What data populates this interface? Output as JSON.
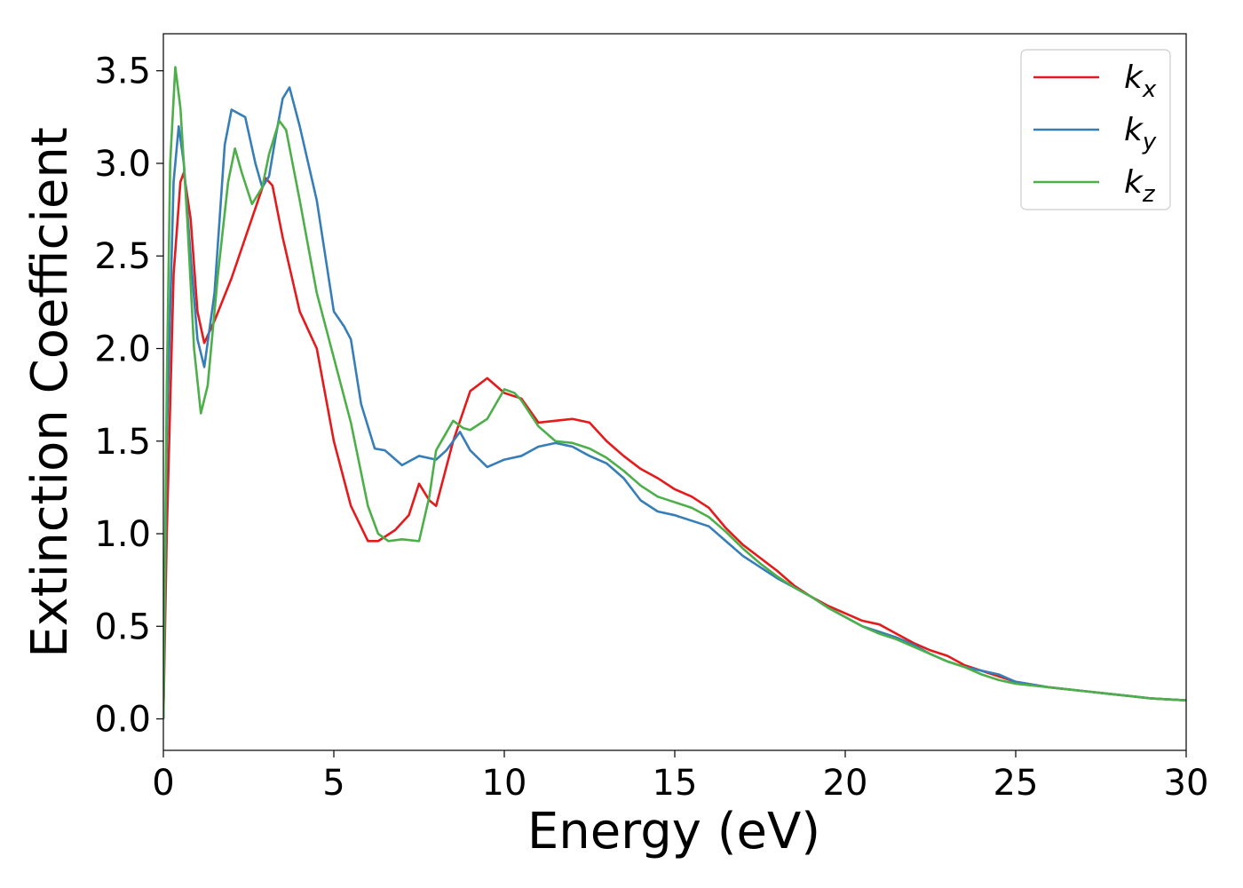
{
  "chart_data": {
    "type": "line",
    "xlabel": "Energy (eV)",
    "ylabel": "Extinction Coefficient",
    "xlim": [
      0,
      30
    ],
    "ylim": [
      -0.17,
      3.7
    ],
    "xticks": [
      0,
      5,
      10,
      15,
      20,
      25,
      30
    ],
    "xtick_labels": [
      "0",
      "5",
      "10",
      "15",
      "20",
      "25",
      "30"
    ],
    "yticks": [
      0.0,
      0.5,
      1.0,
      1.5,
      2.0,
      2.5,
      3.0,
      3.5
    ],
    "ytick_labels": [
      "0.0",
      "0.5",
      "1.0",
      "1.5",
      "2.0",
      "2.5",
      "3.0",
      "3.5"
    ],
    "grid": false,
    "legend_position": "top-right",
    "series": [
      {
        "name": "k_x",
        "label_base": "k",
        "label_sub": "x",
        "color": "#e41a1c",
        "points": [
          [
            0,
            0
          ],
          [
            0.1,
            1.0
          ],
          [
            0.3,
            2.4
          ],
          [
            0.5,
            2.9
          ],
          [
            0.6,
            2.95
          ],
          [
            0.8,
            2.7
          ],
          [
            1.0,
            2.2
          ],
          [
            1.2,
            2.03
          ],
          [
            1.5,
            2.15
          ],
          [
            2.0,
            2.38
          ],
          [
            2.5,
            2.65
          ],
          [
            3.0,
            2.92
          ],
          [
            3.2,
            2.88
          ],
          [
            3.5,
            2.6
          ],
          [
            4.0,
            2.2
          ],
          [
            4.5,
            2.0
          ],
          [
            5.0,
            1.5
          ],
          [
            5.5,
            1.15
          ],
          [
            6.0,
            0.96
          ],
          [
            6.3,
            0.96
          ],
          [
            6.8,
            1.02
          ],
          [
            7.2,
            1.1
          ],
          [
            7.5,
            1.27
          ],
          [
            7.8,
            1.18
          ],
          [
            8.0,
            1.15
          ],
          [
            8.5,
            1.5
          ],
          [
            9.0,
            1.77
          ],
          [
            9.5,
            1.84
          ],
          [
            10.0,
            1.76
          ],
          [
            10.5,
            1.73
          ],
          [
            11.0,
            1.6
          ],
          [
            11.5,
            1.61
          ],
          [
            12.0,
            1.62
          ],
          [
            12.5,
            1.6
          ],
          [
            13.0,
            1.5
          ],
          [
            13.5,
            1.42
          ],
          [
            14.0,
            1.35
          ],
          [
            14.5,
            1.3
          ],
          [
            15.0,
            1.24
          ],
          [
            15.5,
            1.2
          ],
          [
            16.0,
            1.14
          ],
          [
            16.5,
            1.03
          ],
          [
            17.0,
            0.94
          ],
          [
            17.5,
            0.87
          ],
          [
            18.0,
            0.8
          ],
          [
            18.5,
            0.72
          ],
          [
            19.0,
            0.66
          ],
          [
            19.5,
            0.61
          ],
          [
            20.0,
            0.57
          ],
          [
            20.5,
            0.53
          ],
          [
            21.0,
            0.51
          ],
          [
            21.5,
            0.46
          ],
          [
            22.0,
            0.41
          ],
          [
            22.5,
            0.37
          ],
          [
            23.0,
            0.34
          ],
          [
            23.5,
            0.29
          ],
          [
            24.0,
            0.26
          ],
          [
            24.5,
            0.23
          ],
          [
            25.0,
            0.2
          ],
          [
            26.0,
            0.17
          ],
          [
            27.0,
            0.15
          ],
          [
            28.0,
            0.13
          ],
          [
            29.0,
            0.11
          ],
          [
            30.0,
            0.1
          ]
        ]
      },
      {
        "name": "k_y",
        "label_base": "k",
        "label_sub": "y",
        "color": "#377eb8",
        "points": [
          [
            0,
            0
          ],
          [
            0.1,
            1.5
          ],
          [
            0.3,
            2.9
          ],
          [
            0.45,
            3.2
          ],
          [
            0.6,
            3.0
          ],
          [
            0.8,
            2.5
          ],
          [
            1.0,
            2.05
          ],
          [
            1.2,
            1.9
          ],
          [
            1.5,
            2.3
          ],
          [
            1.8,
            3.1
          ],
          [
            2.0,
            3.29
          ],
          [
            2.4,
            3.25
          ],
          [
            2.7,
            3.0
          ],
          [
            2.9,
            2.87
          ],
          [
            3.1,
            2.93
          ],
          [
            3.3,
            3.15
          ],
          [
            3.5,
            3.35
          ],
          [
            3.7,
            3.41
          ],
          [
            4.0,
            3.2
          ],
          [
            4.5,
            2.8
          ],
          [
            5.0,
            2.2
          ],
          [
            5.3,
            2.12
          ],
          [
            5.5,
            2.05
          ],
          [
            5.8,
            1.7
          ],
          [
            6.2,
            1.46
          ],
          [
            6.5,
            1.45
          ],
          [
            7.0,
            1.37
          ],
          [
            7.5,
            1.42
          ],
          [
            8.0,
            1.4
          ],
          [
            8.3,
            1.45
          ],
          [
            8.7,
            1.55
          ],
          [
            9.0,
            1.45
          ],
          [
            9.5,
            1.36
          ],
          [
            10.0,
            1.4
          ],
          [
            10.5,
            1.42
          ],
          [
            11.0,
            1.47
          ],
          [
            11.5,
            1.49
          ],
          [
            12.0,
            1.47
          ],
          [
            12.5,
            1.42
          ],
          [
            13.0,
            1.38
          ],
          [
            13.5,
            1.3
          ],
          [
            14.0,
            1.18
          ],
          [
            14.5,
            1.12
          ],
          [
            15.0,
            1.1
          ],
          [
            15.5,
            1.07
          ],
          [
            16.0,
            1.04
          ],
          [
            16.5,
            0.96
          ],
          [
            17.0,
            0.88
          ],
          [
            17.5,
            0.82
          ],
          [
            18.0,
            0.76
          ],
          [
            18.5,
            0.71
          ],
          [
            19.0,
            0.66
          ],
          [
            19.5,
            0.6
          ],
          [
            20.0,
            0.55
          ],
          [
            20.5,
            0.5
          ],
          [
            21.0,
            0.47
          ],
          [
            21.5,
            0.44
          ],
          [
            22.0,
            0.4
          ],
          [
            22.5,
            0.35
          ],
          [
            23.0,
            0.31
          ],
          [
            23.5,
            0.28
          ],
          [
            24.0,
            0.26
          ],
          [
            24.5,
            0.24
          ],
          [
            25.0,
            0.2
          ],
          [
            26.0,
            0.17
          ],
          [
            27.0,
            0.15
          ],
          [
            28.0,
            0.13
          ],
          [
            29.0,
            0.11
          ],
          [
            30.0,
            0.1
          ]
        ]
      },
      {
        "name": "k_z",
        "label_base": "k",
        "label_sub": "z",
        "color": "#4daf4a",
        "points": [
          [
            0,
            0
          ],
          [
            0.1,
            1.8
          ],
          [
            0.2,
            3.0
          ],
          [
            0.35,
            3.52
          ],
          [
            0.5,
            3.3
          ],
          [
            0.7,
            2.7
          ],
          [
            0.9,
            2.0
          ],
          [
            1.1,
            1.65
          ],
          [
            1.3,
            1.8
          ],
          [
            1.6,
            2.4
          ],
          [
            1.9,
            2.9
          ],
          [
            2.1,
            3.08
          ],
          [
            2.3,
            2.95
          ],
          [
            2.6,
            2.78
          ],
          [
            2.9,
            2.87
          ],
          [
            3.1,
            3.05
          ],
          [
            3.4,
            3.23
          ],
          [
            3.6,
            3.18
          ],
          [
            4.0,
            2.8
          ],
          [
            4.5,
            2.3
          ],
          [
            5.0,
            1.95
          ],
          [
            5.5,
            1.6
          ],
          [
            6.0,
            1.15
          ],
          [
            6.3,
            1.0
          ],
          [
            6.6,
            0.96
          ],
          [
            7.0,
            0.97
          ],
          [
            7.5,
            0.96
          ],
          [
            7.8,
            1.2
          ],
          [
            8.0,
            1.45
          ],
          [
            8.5,
            1.61
          ],
          [
            8.8,
            1.57
          ],
          [
            9.0,
            1.56
          ],
          [
            9.5,
            1.62
          ],
          [
            10.0,
            1.78
          ],
          [
            10.3,
            1.76
          ],
          [
            10.5,
            1.72
          ],
          [
            11.0,
            1.58
          ],
          [
            11.5,
            1.5
          ],
          [
            12.0,
            1.49
          ],
          [
            12.5,
            1.46
          ],
          [
            13.0,
            1.41
          ],
          [
            13.5,
            1.34
          ],
          [
            14.0,
            1.26
          ],
          [
            14.5,
            1.2
          ],
          [
            15.0,
            1.17
          ],
          [
            15.5,
            1.14
          ],
          [
            16.0,
            1.09
          ],
          [
            16.5,
            1.01
          ],
          [
            17.0,
            0.92
          ],
          [
            17.5,
            0.84
          ],
          [
            18.0,
            0.77
          ],
          [
            18.5,
            0.71
          ],
          [
            19.0,
            0.66
          ],
          [
            19.5,
            0.6
          ],
          [
            20.0,
            0.55
          ],
          [
            20.5,
            0.5
          ],
          [
            21.0,
            0.46
          ],
          [
            21.5,
            0.43
          ],
          [
            22.0,
            0.39
          ],
          [
            22.5,
            0.35
          ],
          [
            23.0,
            0.31
          ],
          [
            23.5,
            0.28
          ],
          [
            24.0,
            0.24
          ],
          [
            24.5,
            0.21
          ],
          [
            25.0,
            0.19
          ],
          [
            26.0,
            0.17
          ],
          [
            27.0,
            0.15
          ],
          [
            28.0,
            0.13
          ],
          [
            29.0,
            0.11
          ],
          [
            30.0,
            0.1
          ]
        ]
      }
    ]
  }
}
